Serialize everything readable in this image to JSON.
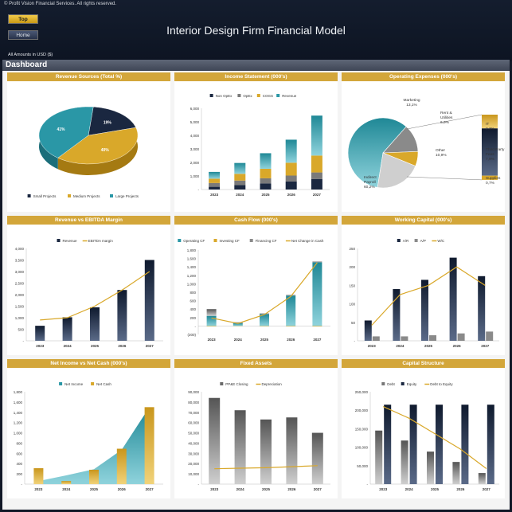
{
  "header": {
    "copyright": "© Profit Vision Financial Services. All rights reserved.",
    "top_btn": "Top",
    "home_btn": "Home",
    "title": "Interior Design Firm Financial Model",
    "amounts": "All Amounts in  USD ($)"
  },
  "dashboard_label": "Dashboard",
  "colors": {
    "gold": "#d3a63a",
    "navy": "#1c2a44",
    "teal": "#2c9aa8",
    "gray": "#8a8a8a",
    "light_gray": "#c9c9c9"
  },
  "chart_data": [
    {
      "id": "revenue-sources",
      "type": "pie",
      "title": "Revenue Sources (Total %)",
      "labels": [
        "Small Projects",
        "Medium Projects",
        "Large Projects"
      ],
      "values": [
        19,
        40,
        41
      ],
      "data_labels": [
        "19%",
        "40%",
        "41%"
      ],
      "legend": "bottom"
    },
    {
      "id": "income-statement",
      "type": "bar",
      "title": "Income Statement (000's)",
      "categories": [
        "2023",
        "2024",
        "2025",
        "2026",
        "2027"
      ],
      "series": [
        {
          "name": "Non OpEx",
          "values": [
            200,
            330,
            450,
            600,
            780
          ]
        },
        {
          "name": "OpEx",
          "values": [
            280,
            330,
            380,
            430,
            480
          ]
        },
        {
          "name": "COGS",
          "values": [
            320,
            500,
            700,
            950,
            1250
          ]
        },
        {
          "name": "Revenue",
          "values": [
            500,
            800,
            1150,
            1700,
            2950
          ]
        }
      ],
      "yticks": [
        "-",
        "1,000",
        "2,000",
        "3,000",
        "4,000",
        "5,000",
        "6,000"
      ],
      "ylim": [
        0,
        6000
      ],
      "legend": "top"
    },
    {
      "id": "operating-expenses",
      "type": "pie",
      "title": "Operating Expenses (000's)",
      "labels": [
        "Indirect Payroll",
        "Marketing",
        "Rent & Utilities",
        "Other",
        "IT",
        "Third Party Fees",
        "Supplies"
      ],
      "values": [
        60.2,
        13.1,
        6.9,
        10.9,
        2.3,
        7.9,
        0.7
      ],
      "data_labels": [
        "Indirect Payroll 60,2%",
        "Marketing 13,1%",
        "Rent & Utilities 6,9%",
        "Other 10,9%",
        "IT 2,3%",
        "Third Party Fees 7,9%",
        "Supplies 0,7%"
      ]
    },
    {
      "id": "revenue-ebitda",
      "type": "bar",
      "title": "Revenue vs EBITDA Margin",
      "categories": [
        "2023",
        "2024",
        "2025",
        "2026",
        "2027"
      ],
      "series": [
        {
          "name": "Revenue",
          "values": [
            650,
            1020,
            1450,
            2200,
            3500
          ]
        },
        {
          "name": "EBITDA margin",
          "values": [
            0.9,
            1.0,
            1.5,
            2.2,
            3.0
          ]
        }
      ],
      "yticks": [
        "-",
        "500",
        "1,000",
        "1,500",
        "2,000",
        "2,500",
        "3,000",
        "3,500",
        "4,000"
      ],
      "ylim": [
        0,
        4000
      ],
      "legend": "top"
    },
    {
      "id": "cash-flow",
      "type": "bar",
      "title": "Cash Flow (000's)",
      "categories": [
        "2023",
        "2024",
        "2025",
        "2026",
        "2027"
      ],
      "series": [
        {
          "name": "Operating CF",
          "values": [
            240,
            70,
            280,
            720,
            1510
          ]
        },
        {
          "name": "Investing CF",
          "values": [
            -10,
            -5,
            -8,
            -10,
            -12
          ]
        },
        {
          "name": "Financing CF",
          "values": [
            160,
            20,
            20,
            20,
            20
          ]
        },
        {
          "name": "Net Change in Cash",
          "values": [
            190,
            60,
            270,
            700,
            1500
          ]
        }
      ],
      "yticks": [
        "(200)",
        "-",
        "200",
        "400",
        "600",
        "800",
        "1,000",
        "1,200",
        "1,400",
        "1,600",
        "1,800"
      ],
      "ylim": [
        -200,
        1800
      ],
      "legend": "top"
    },
    {
      "id": "working-capital",
      "type": "bar",
      "title": "Working Capital (000's)",
      "categories": [
        "2023",
        "2024",
        "2025",
        "2026",
        "2027"
      ],
      "series": [
        {
          "name": "A/R",
          "values": [
            55,
            140,
            165,
            225,
            175
          ]
        },
        {
          "name": "A/P",
          "values": [
            12,
            12,
            15,
            20,
            25
          ]
        },
        {
          "name": "W/C",
          "values": [
            42,
            125,
            150,
            200,
            150
          ]
        }
      ],
      "yticks": [
        "-",
        "50",
        "100",
        "150",
        "200",
        "250"
      ],
      "ylim": [
        0,
        250
      ],
      "legend": "top"
    },
    {
      "id": "net-income-cash",
      "type": "area",
      "title": "Net Income vs Net Cash (000's)",
      "categories": [
        "2023",
        "2024",
        "2025",
        "2026",
        "2027"
      ],
      "series": [
        {
          "name": "Net Income",
          "values": [
            60,
            170,
            290,
            670,
            1500
          ]
        },
        {
          "name": "Net Cash",
          "values": [
            310,
            60,
            280,
            690,
            1500
          ]
        }
      ],
      "yticks": [
        "-",
        "200",
        "400",
        "600",
        "800",
        "1,000",
        "1,200",
        "1,400",
        "1,600",
        "1,800"
      ],
      "ylim": [
        0,
        1800
      ],
      "legend": "top"
    },
    {
      "id": "fixed-assets",
      "type": "bar",
      "title": "Fixed Assets",
      "categories": [
        "2023",
        "2024",
        "2025",
        "2026",
        "2027"
      ],
      "series": [
        {
          "name": "PP&E Closing",
          "values": [
            84000,
            72000,
            63000,
            65000,
            50000
          ]
        },
        {
          "name": "Depreciation",
          "values": [
            15000,
            15500,
            16000,
            17000,
            18000
          ]
        }
      ],
      "yticks": [
        "-",
        "10,000",
        "20,000",
        "30,000",
        "40,000",
        "50,000",
        "60,000",
        "70,000",
        "80,000",
        "90,000"
      ],
      "ylim": [
        0,
        90000
      ],
      "legend": "top"
    },
    {
      "id": "capital-structure",
      "type": "bar",
      "title": "Capital Structure",
      "categories": [
        "2023",
        "2024",
        "2025",
        "2026",
        "2027"
      ],
      "series": [
        {
          "name": "Debt",
          "values": [
            145000,
            118000,
            88000,
            60000,
            30000
          ]
        },
        {
          "name": "Equity",
          "values": [
            215000,
            215000,
            215000,
            215000,
            215000
          ]
        },
        {
          "name": "Debt to Equity",
          "values": [
            1.0,
            0.85,
            0.65,
            0.45,
            0.2
          ]
        }
      ],
      "yticks": [
        "-",
        "50,000",
        "100,000",
        "150,000",
        "200,000",
        "250,000"
      ],
      "ylim": [
        0,
        250000
      ],
      "legend": "top"
    }
  ]
}
